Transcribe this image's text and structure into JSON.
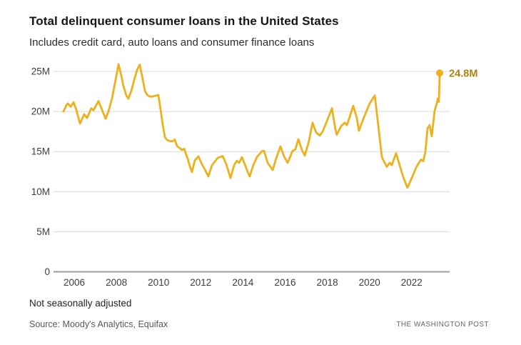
{
  "header": {
    "title": "Total delinquent consumer loans in the United States",
    "subtitle": "Includes credit card, auto loans and consumer finance loans"
  },
  "footer": {
    "note": "Not seasonally adjusted",
    "source": "Source: Moody's Analytics, Equifax",
    "credit": "THE WASHINGTON POST"
  },
  "colors": {
    "line": "#EEB11E",
    "end_dot": "#EEB11E",
    "end_label": "#A9830D",
    "grid": "#D9D9D9",
    "axis": "#9C9C9C",
    "tick_text": "#3C3C3C",
    "title_text": "#151515"
  },
  "chart_data": {
    "type": "line",
    "title": "Total delinquent consumer loans in the United States",
    "subtitle": "Includes credit card, auto loans and consumer finance loans",
    "series_name": "Total delinquent consumer loans",
    "unit": "millions of loans",
    "xlabel": "",
    "ylabel": "",
    "xlim": [
      2005.3,
      2023.6
    ],
    "ylim": [
      0,
      26.8
    ],
    "grid": "horizontal",
    "legend": "none",
    "end_label": "24.8M",
    "end_point": [
      2023.33,
      24.8
    ],
    "y_ticks": [
      {
        "value": 0,
        "label": "0"
      },
      {
        "value": 5,
        "label": "5M"
      },
      {
        "value": 10,
        "label": "10M"
      },
      {
        "value": 15,
        "label": "15M"
      },
      {
        "value": 20,
        "label": "20M"
      },
      {
        "value": 25,
        "label": "25M"
      }
    ],
    "x_ticks": [
      {
        "value": 2006,
        "label": "2006"
      },
      {
        "value": 2008,
        "label": "2008"
      },
      {
        "value": 2010,
        "label": "2010"
      },
      {
        "value": 2012,
        "label": "2012"
      },
      {
        "value": 2014,
        "label": "2014"
      },
      {
        "value": 2016,
        "label": "2016"
      },
      {
        "value": 2018,
        "label": "2018"
      },
      {
        "value": 2020,
        "label": "2020"
      },
      {
        "value": 2022,
        "label": "2022"
      }
    ],
    "points": [
      [
        2005.49,
        20.0
      ],
      [
        2005.63,
        20.8
      ],
      [
        2005.7,
        21.0
      ],
      [
        2005.83,
        20.6
      ],
      [
        2005.97,
        21.15
      ],
      [
        2006.1,
        20.2
      ],
      [
        2006.27,
        18.5
      ],
      [
        2006.47,
        19.65
      ],
      [
        2006.61,
        19.2
      ],
      [
        2006.81,
        20.4
      ],
      [
        2006.91,
        20.15
      ],
      [
        2007.15,
        21.3
      ],
      [
        2007.32,
        20.2
      ],
      [
        2007.49,
        19.1
      ],
      [
        2007.62,
        20.0
      ],
      [
        2007.79,
        21.6
      ],
      [
        2007.93,
        23.5
      ],
      [
        2008.1,
        25.9
      ],
      [
        2008.23,
        24.5
      ],
      [
        2008.33,
        23.2
      ],
      [
        2008.47,
        22.0
      ],
      [
        2008.57,
        21.6
      ],
      [
        2008.71,
        22.6
      ],
      [
        2008.84,
        23.9
      ],
      [
        2008.98,
        25.2
      ],
      [
        2009.11,
        25.85
      ],
      [
        2009.25,
        24.0
      ],
      [
        2009.35,
        22.6
      ],
      [
        2009.45,
        22.1
      ],
      [
        2009.59,
        21.85
      ],
      [
        2009.76,
        21.9
      ],
      [
        2009.89,
        22.0
      ],
      [
        2009.99,
        22.05
      ],
      [
        2010.09,
        20.3
      ],
      [
        2010.2,
        18.3
      ],
      [
        2010.3,
        16.8
      ],
      [
        2010.4,
        16.45
      ],
      [
        2010.53,
        16.3
      ],
      [
        2010.67,
        16.3
      ],
      [
        2010.77,
        16.5
      ],
      [
        2010.87,
        15.7
      ],
      [
        2010.97,
        15.5
      ],
      [
        2011.11,
        15.2
      ],
      [
        2011.21,
        15.35
      ],
      [
        2011.38,
        14.1
      ],
      [
        2011.48,
        13.2
      ],
      [
        2011.58,
        12.45
      ],
      [
        2011.72,
        13.9
      ],
      [
        2011.89,
        14.4
      ],
      [
        2012.06,
        13.4
      ],
      [
        2012.19,
        12.8
      ],
      [
        2012.36,
        11.9
      ],
      [
        2012.53,
        13.3
      ],
      [
        2012.8,
        14.2
      ],
      [
        2013.04,
        14.45
      ],
      [
        2013.21,
        13.4
      ],
      [
        2013.41,
        11.7
      ],
      [
        2013.58,
        13.3
      ],
      [
        2013.71,
        13.85
      ],
      [
        2013.82,
        13.6
      ],
      [
        2013.95,
        14.3
      ],
      [
        2014.09,
        13.4
      ],
      [
        2014.22,
        12.5
      ],
      [
        2014.32,
        11.9
      ],
      [
        2014.49,
        13.3
      ],
      [
        2014.66,
        14.3
      ],
      [
        2014.9,
        15.05
      ],
      [
        2015.0,
        15.1
      ],
      [
        2015.17,
        13.6
      ],
      [
        2015.41,
        12.7
      ],
      [
        2015.58,
        14.2
      ],
      [
        2015.78,
        15.65
      ],
      [
        2015.95,
        14.4
      ],
      [
        2016.12,
        13.6
      ],
      [
        2016.35,
        15.05
      ],
      [
        2016.49,
        15.3
      ],
      [
        2016.63,
        16.55
      ],
      [
        2016.8,
        15.2
      ],
      [
        2016.93,
        14.5
      ],
      [
        2017.13,
        16.3
      ],
      [
        2017.3,
        18.6
      ],
      [
        2017.47,
        17.4
      ],
      [
        2017.64,
        17.0
      ],
      [
        2017.78,
        17.5
      ],
      [
        2017.98,
        18.8
      ],
      [
        2018.22,
        20.4
      ],
      [
        2018.39,
        17.7
      ],
      [
        2018.45,
        17.1
      ],
      [
        2018.66,
        18.2
      ],
      [
        2018.83,
        18.6
      ],
      [
        2018.93,
        18.3
      ],
      [
        2019.06,
        19.3
      ],
      [
        2019.23,
        20.7
      ],
      [
        2019.4,
        19.2
      ],
      [
        2019.5,
        17.6
      ],
      [
        2019.74,
        19.3
      ],
      [
        2020.01,
        21.0
      ],
      [
        2020.25,
        22.0
      ],
      [
        2020.42,
        18.2
      ],
      [
        2020.59,
        14.3
      ],
      [
        2020.82,
        13.1
      ],
      [
        2020.96,
        13.6
      ],
      [
        2021.06,
        13.3
      ],
      [
        2021.26,
        14.8
      ],
      [
        2021.43,
        13.3
      ],
      [
        2021.6,
        11.8
      ],
      [
        2021.8,
        10.5
      ],
      [
        2022.04,
        11.9
      ],
      [
        2022.21,
        13.0
      ],
      [
        2022.34,
        13.6
      ],
      [
        2022.45,
        14.0
      ],
      [
        2022.55,
        13.8
      ],
      [
        2022.65,
        15.0
      ],
      [
        2022.75,
        17.9
      ],
      [
        2022.85,
        18.3
      ],
      [
        2022.95,
        16.9
      ],
      [
        2023.09,
        20.1
      ],
      [
        2023.19,
        21.0
      ],
      [
        2023.24,
        21.6
      ],
      [
        2023.29,
        21.2
      ],
      [
        2023.33,
        24.8
      ]
    ]
  }
}
